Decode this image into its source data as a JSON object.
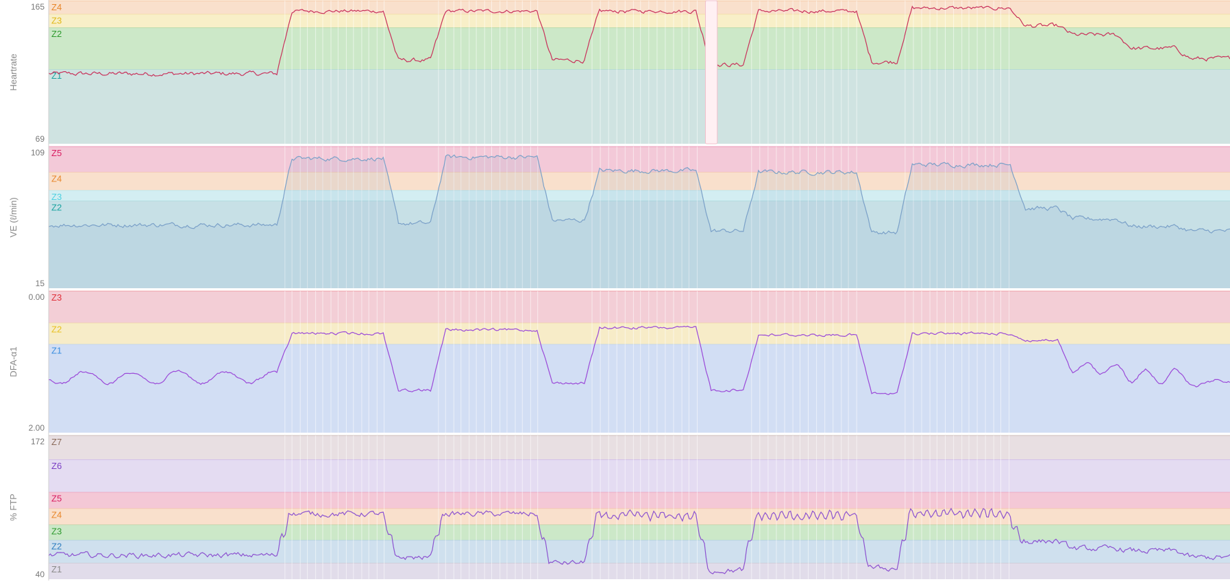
{
  "chart_data": [
    {
      "type": "line",
      "ylabel": "Heartrate",
      "ylim": [
        69,
        165
      ],
      "tick_labels": [
        "165",
        "69"
      ],
      "line_color": "#c8305a",
      "grid": false,
      "zones": [
        {
          "name": "Z1",
          "range": [
            69,
            119
          ],
          "fill": "#cfe3e1",
          "label_color": "#1aa3a0"
        },
        {
          "name": "Z2",
          "range": [
            119,
            147
          ],
          "fill": "#cce8c8",
          "label_color": "#2e9a2e"
        },
        {
          "name": "Z3",
          "range": [
            147,
            156
          ],
          "fill": "#f8efc8",
          "label_color": "#e0b818"
        },
        {
          "name": "Z4",
          "range": [
            156,
            165
          ],
          "fill": "#f9e0cc",
          "label_color": "#e8862a"
        }
      ],
      "segments": [
        {
          "start": 0,
          "end": 0.2,
          "value": 116,
          "noise": 1.5,
          "wave_amp": 0,
          "wave_count": 0
        },
        {
          "start": 0.2,
          "end": 0.29,
          "value": 158,
          "noise": 1.2,
          "wave_amp": 4,
          "wave_count": 14
        },
        {
          "start": 0.29,
          "end": 0.33,
          "value": 125,
          "noise": 1.5,
          "wave_amp": 0,
          "wave_count": 0
        },
        {
          "start": 0.33,
          "end": 0.42,
          "value": 158,
          "noise": 1.2,
          "wave_amp": 4,
          "wave_count": 14
        },
        {
          "start": 0.42,
          "end": 0.46,
          "value": 125,
          "noise": 1.5,
          "wave_amp": 0,
          "wave_count": 0
        },
        {
          "start": 0.46,
          "end": 0.555,
          "value": 158,
          "noise": 1.2,
          "wave_amp": 4,
          "wave_count": 14
        },
        {
          "start": 0.555,
          "end": 0.595,
          "value": 122,
          "noise": 1.5,
          "wave_amp": 0,
          "wave_count": 0
        },
        {
          "start": 0.595,
          "end": 0.69,
          "value": 158,
          "noise": 1.2,
          "wave_amp": 4,
          "wave_count": 14
        },
        {
          "start": 0.69,
          "end": 0.725,
          "value": 124,
          "noise": 1.5,
          "wave_amp": 0,
          "wave_count": 0
        },
        {
          "start": 0.725,
          "end": 0.82,
          "value": 160,
          "noise": 1.2,
          "wave_amp": 4,
          "wave_count": 14
        },
        {
          "start": 0.82,
          "end": 0.86,
          "value": 148,
          "noise": 1.5,
          "wave_amp": 0,
          "wave_count": 0
        },
        {
          "start": 0.86,
          "end": 0.91,
          "value": 142,
          "noise": 1.5,
          "wave_amp": 0,
          "wave_count": 0
        },
        {
          "start": 0.91,
          "end": 0.96,
          "value": 133,
          "noise": 1.5,
          "wave_amp": 0,
          "wave_count": 0
        },
        {
          "start": 0.96,
          "end": 1,
          "value": 126,
          "noise": 1.5,
          "wave_amp": 0,
          "wave_count": 0
        }
      ]
    },
    {
      "type": "area",
      "ylabel": "VE (ℓ/min)",
      "ylim": [
        15,
        109
      ],
      "tick_labels": [
        "109",
        "15"
      ],
      "line_color": "#7aa0c8",
      "grid": false,
      "zones": [
        {
          "name": "Z2",
          "range": [
            15,
            73
          ],
          "fill": "#c7e0e6",
          "label_color": "#1aa3a0"
        },
        {
          "name": "Z3",
          "range": [
            73,
            80
          ],
          "fill": "#d3eef2",
          "label_color": "#4fd0e0"
        },
        {
          "name": "Z4",
          "range": [
            80,
            92
          ],
          "fill": "#f9e0cc",
          "label_color": "#e8862a"
        },
        {
          "name": "Z5",
          "range": [
            92,
            109
          ],
          "fill": "#f3c9d8",
          "label_color": "#d81b60"
        }
      ],
      "segments": [
        {
          "start": 0,
          "end": 0.2,
          "value": 57,
          "noise": 1.5,
          "wave_amp": 0,
          "wave_count": 0
        },
        {
          "start": 0.2,
          "end": 0.29,
          "value": 101,
          "noise": 1.5,
          "wave_amp": 0,
          "wave_count": 0
        },
        {
          "start": 0.29,
          "end": 0.33,
          "value": 58,
          "noise": 1.5,
          "wave_amp": 0,
          "wave_count": 0
        },
        {
          "start": 0.33,
          "end": 0.42,
          "value": 102,
          "noise": 1.5,
          "wave_amp": 0,
          "wave_count": 0
        },
        {
          "start": 0.42,
          "end": 0.46,
          "value": 60,
          "noise": 1.5,
          "wave_amp": 0,
          "wave_count": 0
        },
        {
          "start": 0.46,
          "end": 0.555,
          "value": 93,
          "noise": 1.5,
          "wave_amp": 0,
          "wave_count": 0
        },
        {
          "start": 0.555,
          "end": 0.595,
          "value": 53,
          "noise": 1.5,
          "wave_amp": 0,
          "wave_count": 0
        },
        {
          "start": 0.595,
          "end": 0.69,
          "value": 92,
          "noise": 1.5,
          "wave_amp": 0,
          "wave_count": 0
        },
        {
          "start": 0.69,
          "end": 0.725,
          "value": 52,
          "noise": 1.5,
          "wave_amp": 0,
          "wave_count": 0
        },
        {
          "start": 0.725,
          "end": 0.82,
          "value": 97,
          "noise": 1.5,
          "wave_amp": 0,
          "wave_count": 0
        },
        {
          "start": 0.82,
          "end": 0.86,
          "value": 68,
          "noise": 1.5,
          "wave_amp": 0,
          "wave_count": 0
        },
        {
          "start": 0.86,
          "end": 0.91,
          "value": 61,
          "noise": 1.5,
          "wave_amp": 0,
          "wave_count": 0
        },
        {
          "start": 0.91,
          "end": 0.96,
          "value": 56,
          "noise": 1.5,
          "wave_amp": 0,
          "wave_count": 0
        },
        {
          "start": 0.96,
          "end": 1,
          "value": 53,
          "noise": 1.5,
          "wave_amp": 0,
          "wave_count": 0
        }
      ]
    },
    {
      "type": "line",
      "ylabel": "DFA-α1",
      "ylim": [
        2.0,
        0.0
      ],
      "tick_labels": [
        "0.00",
        "2.00"
      ],
      "line_color": "#9a48d8",
      "grid": false,
      "zones": [
        {
          "name": "Z1",
          "range": [
            0.75,
            2.0
          ],
          "fill": "#d2def4",
          "label_color": "#3a8ee0"
        },
        {
          "name": "Z2",
          "range": [
            0.45,
            0.75
          ],
          "fill": "#f7ecc8",
          "label_color": "#e8c020"
        },
        {
          "name": "Z3",
          "range": [
            0.0,
            0.45
          ],
          "fill": "#f3ced6",
          "label_color": "#e0303a"
        }
      ],
      "segments": [
        {
          "start": 0,
          "end": 0.2,
          "value": 1.22,
          "noise": 0.02,
          "wave_amp": 0.1,
          "wave_count": 5
        },
        {
          "start": 0.2,
          "end": 0.29,
          "value": 0.6,
          "noise": 0.02,
          "wave_amp": 0,
          "wave_count": 0
        },
        {
          "start": 0.29,
          "end": 0.33,
          "value": 1.4,
          "noise": 0.02,
          "wave_amp": 0,
          "wave_count": 0
        },
        {
          "start": 0.33,
          "end": 0.42,
          "value": 0.55,
          "noise": 0.02,
          "wave_amp": 0,
          "wave_count": 0
        },
        {
          "start": 0.42,
          "end": 0.46,
          "value": 1.3,
          "noise": 0.02,
          "wave_amp": 0,
          "wave_count": 0
        },
        {
          "start": 0.46,
          "end": 0.555,
          "value": 0.52,
          "noise": 0.02,
          "wave_amp": 0,
          "wave_count": 0
        },
        {
          "start": 0.555,
          "end": 0.595,
          "value": 1.4,
          "noise": 0.02,
          "wave_amp": 0,
          "wave_count": 0
        },
        {
          "start": 0.595,
          "end": 0.69,
          "value": 0.62,
          "noise": 0.02,
          "wave_amp": 0,
          "wave_count": 0
        },
        {
          "start": 0.69,
          "end": 0.725,
          "value": 1.45,
          "noise": 0.02,
          "wave_amp": 0,
          "wave_count": 0
        },
        {
          "start": 0.725,
          "end": 0.82,
          "value": 0.6,
          "noise": 0.02,
          "wave_amp": 0,
          "wave_count": 0
        },
        {
          "start": 0.82,
          "end": 0.86,
          "value": 0.7,
          "noise": 0.02,
          "wave_amp": 0,
          "wave_count": 0
        },
        {
          "start": 0.86,
          "end": 0.91,
          "value": 1.1,
          "noise": 0.02,
          "wave_amp": 0.12,
          "wave_count": 2
        },
        {
          "start": 0.91,
          "end": 0.96,
          "value": 1.2,
          "noise": 0.02,
          "wave_amp": 0.15,
          "wave_count": 2
        },
        {
          "start": 0.96,
          "end": 1,
          "value": 1.3,
          "noise": 0.02,
          "wave_amp": 0.05,
          "wave_count": 1
        }
      ]
    },
    {
      "type": "line",
      "ylabel": "% FTP",
      "ylim": [
        40,
        172
      ],
      "tick_labels": [
        "172",
        "40"
      ],
      "line_color": "#8c52d0",
      "grid": false,
      "zones": [
        {
          "name": "Z1",
          "range": [
            40,
            55
          ],
          "fill": "#e1dcea",
          "label_color": "#8a8a8a"
        },
        {
          "name": "Z2",
          "range": [
            55,
            76
          ],
          "fill": "#cfe0ee",
          "label_color": "#2f7ec0"
        },
        {
          "name": "Z3",
          "range": [
            76,
            90
          ],
          "fill": "#cce8c8",
          "label_color": "#2e9a2e"
        },
        {
          "name": "Z4",
          "range": [
            90,
            105
          ],
          "fill": "#f9e0cc",
          "label_color": "#e8862a"
        },
        {
          "name": "Z5",
          "range": [
            105,
            120
          ],
          "fill": "#f4c8d6",
          "label_color": "#d81b60"
        },
        {
          "name": "Z6",
          "range": [
            120,
            150
          ],
          "fill": "#e4dcf2",
          "label_color": "#7b3fc4"
        },
        {
          "name": "Z7",
          "range": [
            150,
            172
          ],
          "fill": "#e8dfe2",
          "label_color": "#8a6a5a"
        }
      ],
      "segments": [
        {
          "start": 0,
          "end": 0.2,
          "value": 62,
          "noise": 2.5,
          "wave_amp": 0,
          "wave_count": 0
        },
        {
          "start": 0.2,
          "end": 0.29,
          "value": 100,
          "noise": 2.5,
          "wave_amp": 55,
          "wave_count": 14
        },
        {
          "start": 0.29,
          "end": 0.33,
          "value": 60,
          "noise": 2.5,
          "wave_amp": 0,
          "wave_count": 0
        },
        {
          "start": 0.33,
          "end": 0.42,
          "value": 100,
          "noise": 2.5,
          "wave_amp": 55,
          "wave_count": 14
        },
        {
          "start": 0.42,
          "end": 0.46,
          "value": 55,
          "noise": 2.5,
          "wave_amp": 0,
          "wave_count": 0
        },
        {
          "start": 0.46,
          "end": 0.555,
          "value": 98,
          "noise": 2.5,
          "wave_amp": 50,
          "wave_count": 14
        },
        {
          "start": 0.555,
          "end": 0.595,
          "value": 48,
          "noise": 2.5,
          "wave_amp": 0,
          "wave_count": 0
        },
        {
          "start": 0.595,
          "end": 0.69,
          "value": 98,
          "noise": 2.5,
          "wave_amp": 50,
          "wave_count": 14
        },
        {
          "start": 0.69,
          "end": 0.725,
          "value": 50,
          "noise": 2.5,
          "wave_amp": 0,
          "wave_count": 0
        },
        {
          "start": 0.725,
          "end": 0.82,
          "value": 100,
          "noise": 2.5,
          "wave_amp": 55,
          "wave_count": 14
        },
        {
          "start": 0.82,
          "end": 0.86,
          "value": 75,
          "noise": 2.5,
          "wave_amp": 0,
          "wave_count": 0
        },
        {
          "start": 0.86,
          "end": 0.91,
          "value": 68,
          "noise": 2.5,
          "wave_amp": 0,
          "wave_count": 0
        },
        {
          "start": 0.91,
          "end": 0.96,
          "value": 66,
          "noise": 2.5,
          "wave_amp": 0,
          "wave_count": 0
        },
        {
          "start": 0.96,
          "end": 1,
          "value": 60,
          "noise": 2.5,
          "wave_amp": 0,
          "wave_count": 0
        }
      ]
    }
  ],
  "highlight": {
    "start": 0.556,
    "end": 0.566
  },
  "interval_starts": [
    0.2,
    0.206,
    0.213,
    0.219,
    0.226,
    0.232,
    0.239,
    0.245,
    0.252,
    0.258,
    0.265,
    0.271,
    0.278,
    0.284,
    0.33,
    0.336,
    0.343,
    0.349,
    0.356,
    0.362,
    0.369,
    0.375,
    0.382,
    0.388,
    0.395,
    0.401,
    0.408,
    0.414,
    0.46,
    0.467,
    0.474,
    0.481,
    0.488,
    0.495,
    0.501,
    0.508,
    0.515,
    0.522,
    0.529,
    0.536,
    0.542,
    0.549,
    0.595,
    0.602,
    0.609,
    0.616,
    0.623,
    0.63,
    0.636,
    0.643,
    0.65,
    0.657,
    0.664,
    0.671,
    0.677,
    0.684,
    0.725,
    0.732,
    0.739,
    0.746,
    0.752,
    0.759,
    0.766,
    0.773,
    0.779,
    0.786,
    0.793,
    0.8,
    0.806,
    0.813
  ]
}
